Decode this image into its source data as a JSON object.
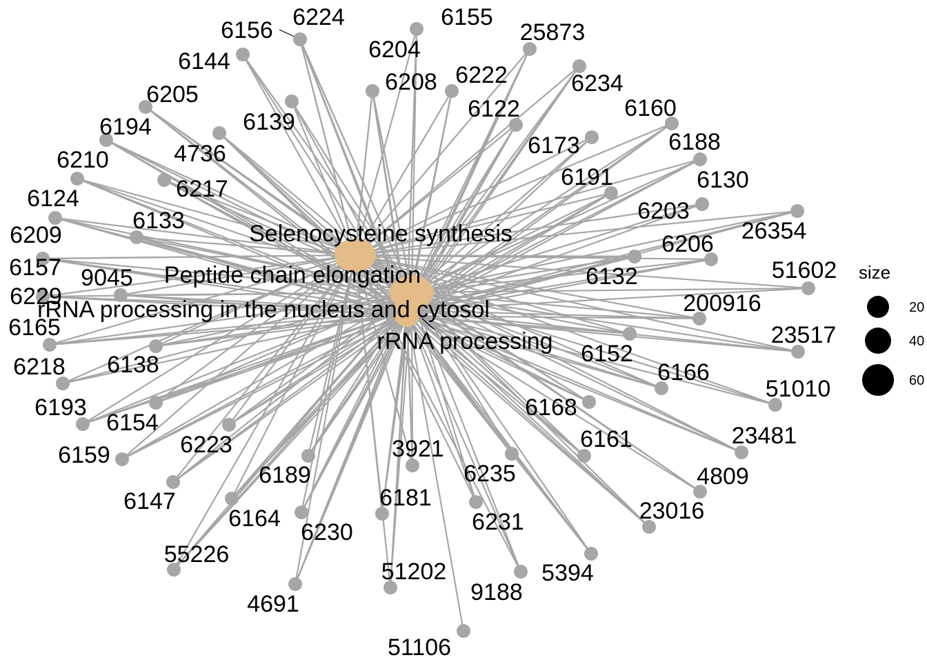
{
  "colors": {
    "edge": "#a6a6a6",
    "gene_node": "#a6a6a6",
    "category_node": "#e3bc87",
    "text": "#000000",
    "background": "#ffffff"
  },
  "chart_data": {
    "type": "network",
    "categories": [
      {
        "name": "Selenocysteine synthesis",
        "size": 60
      },
      {
        "name": "Peptide chain elongation",
        "size": 60
      },
      {
        "name": "rRNA processing in the nucleus and cytosol",
        "size": 60
      },
      {
        "name": "rRNA processing",
        "size": 60
      }
    ],
    "genes": [
      "6224",
      "6155",
      "6156",
      "6204",
      "25873",
      "6144",
      "6208",
      "6222",
      "6234",
      "6205",
      "6139",
      "6122",
      "6160",
      "6194",
      "4736",
      "6173",
      "6188",
      "6210",
      "6217",
      "6191",
      "6130",
      "6124",
      "6133",
      "6203",
      "26354",
      "6209",
      "6206",
      "6157",
      "9045",
      "6132",
      "51602",
      "6229",
      "200916",
      "6165",
      "23517",
      "6218",
      "6138",
      "6152",
      "6166",
      "6193",
      "51010",
      "6154",
      "6168",
      "6159",
      "6223",
      "6161",
      "23481",
      "3921",
      "6189",
      "6235",
      "4809",
      "6147",
      "6181",
      "23016",
      "6164",
      "6231",
      "6230",
      "5394",
      "55226",
      "51202",
      "9188",
      "4691",
      "51106"
    ],
    "legend": {
      "title": "size",
      "entries": [
        {
          "label": "20",
          "value": 20
        },
        {
          "label": "40",
          "value": 40
        },
        {
          "label": "60",
          "value": 60
        }
      ]
    }
  }
}
